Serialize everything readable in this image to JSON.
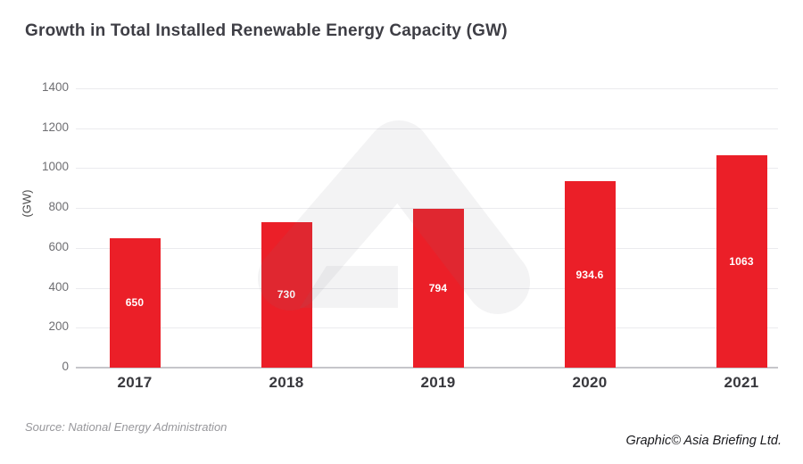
{
  "title": "Growth in Total Installed Renewable Energy Capacity (GW)",
  "chart_data": {
    "type": "bar",
    "title": "Growth in Total Installed Renewable Energy Capacity (GW)",
    "categories": [
      "2017",
      "2018",
      "2019",
      "2020",
      "2021"
    ],
    "values": [
      650,
      730,
      794,
      934.6,
      1063
    ],
    "value_labels": [
      "650",
      "730",
      "794",
      "934.6",
      "1063"
    ],
    "xlabel": "",
    "ylabel": "(GW)",
    "ylim": [
      0,
      1400
    ],
    "yticks": [
      0,
      200,
      400,
      600,
      800,
      1000,
      1200,
      1400
    ],
    "grid": true,
    "legend": "none",
    "bar_color": "#EB1F28",
    "value_label_color": "#FFFFFF"
  },
  "watermark": {
    "icon": "asia-briefing-arrow-logo"
  },
  "footer": {
    "source": "Source: National Energy Administration",
    "credit": "Graphic© Asia Briefing Ltd."
  }
}
